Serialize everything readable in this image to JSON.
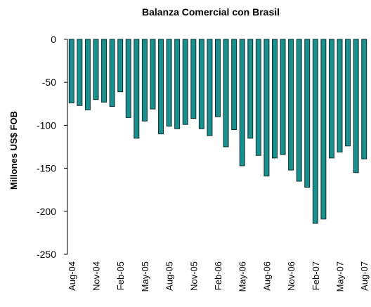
{
  "chart_data": {
    "type": "bar",
    "title": "Balanza Comercial con Brasil",
    "y_label": "Millones US$ FOB",
    "categories": [
      "Aug-04",
      null,
      null,
      "Nov-04",
      null,
      null,
      "Feb-05",
      null,
      null,
      "May-05",
      null,
      null,
      "Aug-05",
      null,
      null,
      "Nov-05",
      null,
      null,
      "Feb-06",
      null,
      null,
      "May-06",
      null,
      null,
      "Aug-06",
      null,
      null,
      "Nov-06",
      null,
      null,
      "Feb-07",
      null,
      null,
      "May-07",
      null,
      null,
      "Aug-07"
    ],
    "values": [
      -74,
      -77,
      -82,
      -70,
      -73,
      -78,
      -61,
      -91,
      -115,
      -95,
      -81,
      -110,
      -101,
      -104,
      -99,
      -92,
      -104,
      -112,
      -90,
      -125,
      -105,
      -147,
      -115,
      -135,
      -159,
      -138,
      -134,
      -152,
      -165,
      -172,
      -214,
      -209,
      -138,
      -131,
      -124,
      -155,
      -139
    ],
    "color": "#1b8e8e",
    "ylim": [
      -250,
      0
    ],
    "yticks": [
      -250,
      -200,
      -150,
      -100,
      -50,
      0
    ]
  }
}
